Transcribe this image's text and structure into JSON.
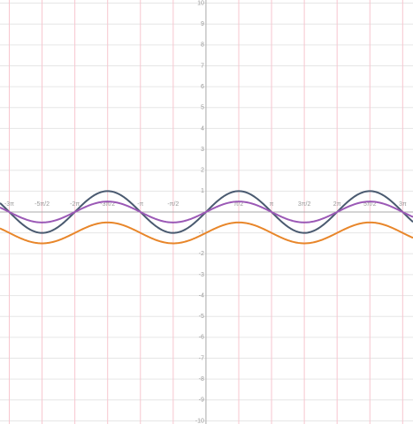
{
  "chart_data": {
    "type": "sine",
    "xlim": [
      -9.87,
      9.92
    ],
    "ylim": [
      -10.15,
      10.15
    ],
    "xticks": [
      {
        "value": -9.42478,
        "label": "-3π"
      },
      {
        "value": -7.85398,
        "label": "-5π/2"
      },
      {
        "value": -6.28319,
        "label": "-2π"
      },
      {
        "value": -4.71239,
        "label": "-3π/2"
      },
      {
        "value": -3.14159,
        "label": "-π"
      },
      {
        "value": -1.5708,
        "label": "-π/2"
      },
      {
        "value": 1.5708,
        "label": "π/2"
      },
      {
        "value": 3.14159,
        "label": "π"
      },
      {
        "value": 4.71239,
        "label": "3π/2"
      },
      {
        "value": 6.28319,
        "label": "2π"
      },
      {
        "value": 7.85398,
        "label": "5π/2"
      },
      {
        "value": 9.42478,
        "label": "3π"
      }
    ],
    "yticks": [
      10,
      9,
      8,
      7,
      6,
      5,
      4,
      3,
      2,
      1,
      -1,
      -2,
      -3,
      -4,
      -5,
      -6,
      -7,
      -8,
      -9,
      -10
    ],
    "series": [
      {
        "color": "#4a5a70",
        "amplitude": 1,
        "offset": 0
      },
      {
        "color": "#9b59b6",
        "amplitude": 0.5,
        "offset": 0
      },
      {
        "color": "#e8862a",
        "amplitude": 0.5,
        "offset": -1
      }
    ]
  }
}
